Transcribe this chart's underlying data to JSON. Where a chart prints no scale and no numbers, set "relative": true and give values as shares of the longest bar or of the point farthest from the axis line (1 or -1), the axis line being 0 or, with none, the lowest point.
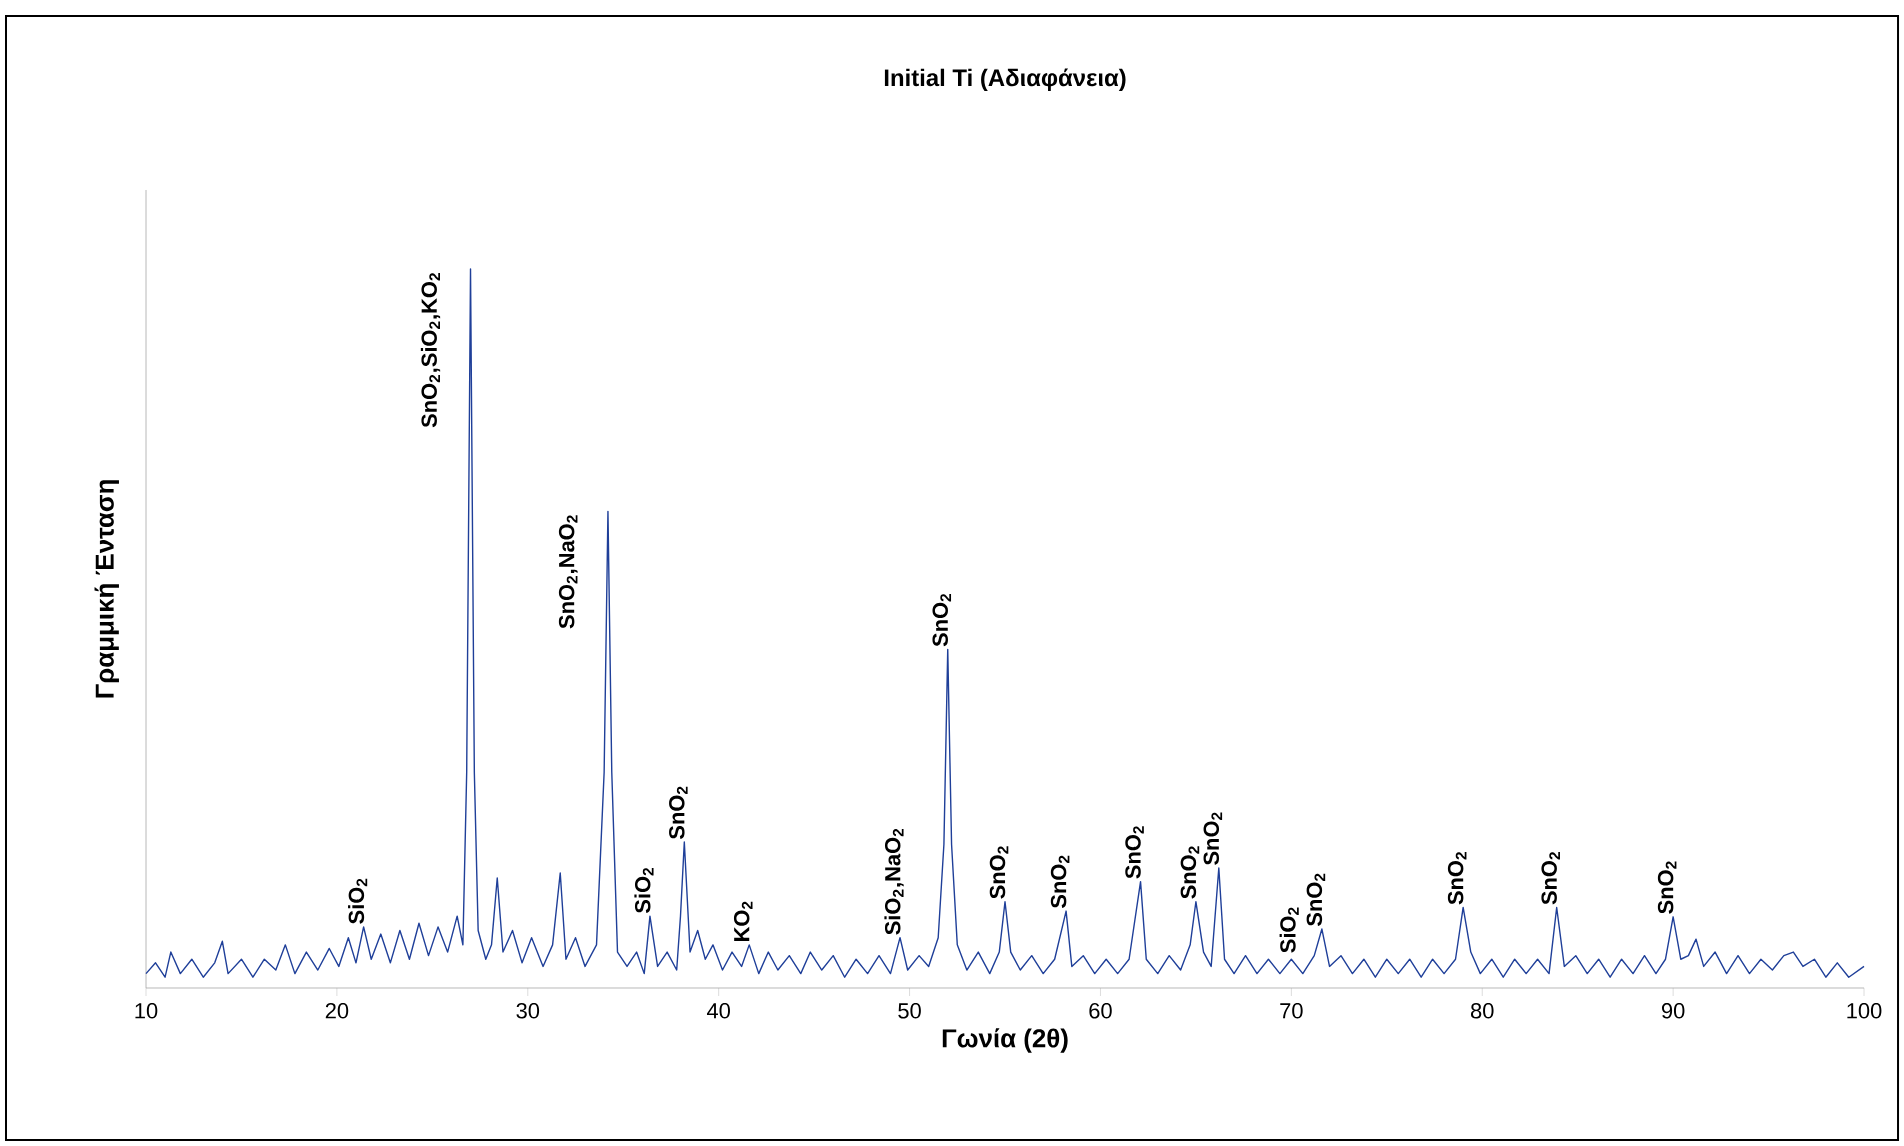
{
  "chart_data": {
    "type": "line",
    "title": "Initial Ti (Αδιαφάνεια)",
    "xlabel": "Γωνία (2θ)",
    "ylabel": "Γραμμική Ένταση",
    "relative": true,
    "color": "#1f3f99",
    "xlim": [
      10,
      100
    ],
    "xticks": [
      10,
      20,
      30,
      40,
      50,
      60,
      70,
      80,
      90,
      100
    ],
    "grid": false,
    "marker": "none",
    "line_style": "solid",
    "x": [
      10,
      10.5,
      11,
      11.3,
      11.8,
      12.4,
      13,
      13.6,
      14,
      14.3,
      15,
      15.6,
      16.2,
      16.8,
      17.3,
      17.8,
      18.4,
      19,
      19.6,
      20.1,
      20.6,
      21,
      21.4,
      21.8,
      22.3,
      22.8,
      23.3,
      23.8,
      24.3,
      24.8,
      25.3,
      25.8,
      26.3,
      26.6,
      26.8,
      27.0,
      27.2,
      27.4,
      27.8,
      28.1,
      28.4,
      28.7,
      29.2,
      29.7,
      30.2,
      30.8,
      31.3,
      31.7,
      32,
      32.5,
      33,
      33.6,
      34.0,
      34.2,
      34.4,
      34.7,
      35.2,
      35.7,
      36.1,
      36.4,
      36.8,
      37.3,
      37.8,
      38.0,
      38.2,
      38.5,
      38.9,
      39.3,
      39.7,
      40.2,
      40.7,
      41.2,
      41.6,
      42.1,
      42.6,
      43.1,
      43.7,
      44.3,
      44.8,
      45.4,
      46,
      46.6,
      47.2,
      47.8,
      48.4,
      49,
      49.5,
      49.9,
      50.5,
      51,
      51.5,
      51.8,
      52.0,
      52.2,
      52.5,
      53,
      53.6,
      54.2,
      54.7,
      55.0,
      55.3,
      55.8,
      56.4,
      57,
      57.6,
      58.2,
      58.5,
      59.1,
      59.7,
      60.3,
      60.9,
      61.5,
      62.1,
      62.4,
      63,
      63.6,
      64.2,
      64.7,
      65.0,
      65.4,
      65.8,
      66.2,
      66.5,
      67,
      67.6,
      68.2,
      68.8,
      69.4,
      70,
      70.6,
      71.2,
      71.6,
      72,
      72.6,
      73.2,
      73.8,
      74.4,
      75,
      75.6,
      76.2,
      76.8,
      77.4,
      78,
      78.6,
      79.0,
      79.4,
      79.9,
      80.5,
      81.1,
      81.7,
      82.3,
      82.9,
      83.5,
      83.9,
      84.3,
      84.9,
      85.5,
      86.1,
      86.7,
      87.3,
      87.9,
      88.5,
      89.1,
      89.6,
      90.0,
      90.4,
      90.8,
      91.2,
      91.6,
      92.2,
      92.8,
      93.4,
      94,
      94.6,
      95.2,
      95.8,
      96.3,
      96.8,
      97.4,
      98,
      98.6,
      99.2,
      100
    ],
    "values": [
      0.02,
      0.035,
      0.015,
      0.05,
      0.02,
      0.04,
      0.015,
      0.035,
      0.065,
      0.02,
      0.04,
      0.015,
      0.04,
      0.025,
      0.06,
      0.02,
      0.05,
      0.025,
      0.055,
      0.03,
      0.07,
      0.035,
      0.085,
      0.04,
      0.075,
      0.035,
      0.08,
      0.04,
      0.09,
      0.045,
      0.085,
      0.05,
      0.1,
      0.06,
      0.3,
      1.0,
      0.3,
      0.08,
      0.04,
      0.06,
      0.153,
      0.05,
      0.08,
      0.035,
      0.07,
      0.03,
      0.06,
      0.16,
      0.04,
      0.07,
      0.03,
      0.06,
      0.3,
      0.663,
      0.3,
      0.05,
      0.03,
      0.05,
      0.02,
      0.1,
      0.03,
      0.05,
      0.025,
      0.1,
      0.203,
      0.05,
      0.08,
      0.04,
      0.06,
      0.025,
      0.05,
      0.03,
      0.06,
      0.02,
      0.05,
      0.025,
      0.045,
      0.02,
      0.05,
      0.025,
      0.045,
      0.015,
      0.04,
      0.02,
      0.045,
      0.02,
      0.07,
      0.025,
      0.045,
      0.03,
      0.07,
      0.2,
      0.471,
      0.2,
      0.06,
      0.025,
      0.05,
      0.02,
      0.05,
      0.12,
      0.05,
      0.025,
      0.045,
      0.02,
      0.04,
      0.107,
      0.03,
      0.045,
      0.02,
      0.04,
      0.02,
      0.04,
      0.148,
      0.04,
      0.02,
      0.045,
      0.025,
      0.06,
      0.12,
      0.05,
      0.03,
      0.167,
      0.04,
      0.02,
      0.045,
      0.02,
      0.04,
      0.02,
      0.04,
      0.02,
      0.045,
      0.082,
      0.03,
      0.045,
      0.02,
      0.04,
      0.015,
      0.04,
      0.02,
      0.04,
      0.015,
      0.04,
      0.02,
      0.04,
      0.112,
      0.05,
      0.02,
      0.04,
      0.015,
      0.04,
      0.02,
      0.04,
      0.02,
      0.112,
      0.03,
      0.045,
      0.02,
      0.04,
      0.015,
      0.04,
      0.02,
      0.045,
      0.02,
      0.04,
      0.099,
      0.04,
      0.045,
      0.068,
      0.03,
      0.05,
      0.02,
      0.045,
      0.02,
      0.04,
      0.025,
      0.045,
      0.05,
      0.03,
      0.04,
      0.015,
      0.035,
      0.015,
      0.03
    ],
    "annotations": [
      {
        "text": "SiO$_{2}$",
        "x": 21.4,
        "y": 0.085
      },
      {
        "text": "SnO$_{2}$,SiO$_{2}$,KO$_{2}$",
        "x": 27.0,
        "y": 1.0
      },
      {
        "text": "SnO$_{2}$,NaO$_{2}$",
        "x": 34.2,
        "y": 0.663
      },
      {
        "text": "SiO$_{2}$",
        "x": 36.4,
        "y": 0.1
      },
      {
        "text": "SnO$_{2}$",
        "x": 38.2,
        "y": 0.203
      },
      {
        "text": "KO$_{2}$",
        "x": 41.6,
        "y": 0.06
      },
      {
        "text": "SiO$_{2}$,NaO$_{2}$",
        "x": 49.5,
        "y": 0.07
      },
      {
        "text": "SnO$_{2}$",
        "x": 52.0,
        "y": 0.471
      },
      {
        "text": "SnO$_{2}$",
        "x": 55.0,
        "y": 0.12
      },
      {
        "text": "SnO$_{2}$",
        "x": 58.2,
        "y": 0.107
      },
      {
        "text": "SnO$_{2}$",
        "x": 62.1,
        "y": 0.148
      },
      {
        "text": "SnO$_{2}$",
        "x": 65.0,
        "y": 0.12
      },
      {
        "text": "SnO$_{2}$",
        "x": 66.2,
        "y": 0.167
      },
      {
        "text": "SiO$_{2}$",
        "x": 70.2,
        "y": 0.045
      },
      {
        "text": "SnO$_{2}$",
        "x": 71.6,
        "y": 0.082
      },
      {
        "text": "SnO$_{2}$",
        "x": 79.0,
        "y": 0.112
      },
      {
        "text": "SnO$_{2}$",
        "x": 83.9,
        "y": 0.112
      },
      {
        "text": "SnO$_{2}$",
        "x": 90.0,
        "y": 0.099
      }
    ]
  }
}
